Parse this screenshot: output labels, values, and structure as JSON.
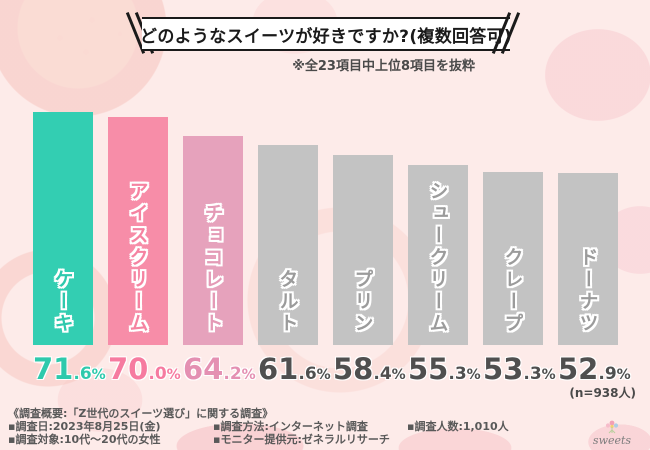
{
  "chart_data": {
    "type": "bar",
    "title": "どのようなスイーツが好きですか?(複数回答可)",
    "subtitle": "※全23項目中上位8項目を抜粋",
    "note": "(n=938人)",
    "categories": [
      "ケーキ",
      "アイスクリーム",
      "チョコレート",
      "タルト",
      "プリン",
      "シュークリーム",
      "クレープ",
      "ドーナツ"
    ],
    "values": [
      71.6,
      70.0,
      64.2,
      61.6,
      58.4,
      55.3,
      53.3,
      52.9
    ],
    "unit": "%",
    "ylim": [
      0,
      75
    ],
    "grid": false,
    "legend": false,
    "bar_colors": [
      "#33ceb2",
      "#f78da8",
      "#e6a2bc",
      "#c3c3c3",
      "#c3c3c3",
      "#c3c3c3",
      "#c3c3c3",
      "#c3c3c3"
    ],
    "label_text_colors": [
      "#2fc9ad",
      "#f583a1",
      "#e49ab6",
      "#9b9b9b",
      "#9b9b9b",
      "#9b9b9b",
      "#9b9b9b",
      "#9b9b9b"
    ],
    "value_text_colors": [
      "#2ec9ac",
      "#f67ba0",
      "#e490b2",
      "#4f4f4f",
      "#4f4f4f",
      "#4f4f4f",
      "#4f4f4f",
      "#4f4f4f"
    ]
  },
  "footer": {
    "heading": "《調査概要:「Z世代のスイーツ選び」に関する調査》",
    "survey_date": "▪調査日:2023年8月25日(金)",
    "survey_target": "▪調査対象:10代〜20代の女性",
    "survey_method": "▪調査方法:インターネット調査",
    "monitor_provider": "▪モニター提供元:ゼネラルリサーチ",
    "survey_count": "▪調査人数:1,010人",
    "logo_text": "sweets"
  },
  "colors": {
    "background": "#fdebe9",
    "accent_teal": "#33ceb2",
    "accent_pink": "#f78da8",
    "accent_dusty_pink": "#e6a2bc",
    "bar_gray": "#c3c3c3",
    "title_border": "#1a1a1a"
  }
}
